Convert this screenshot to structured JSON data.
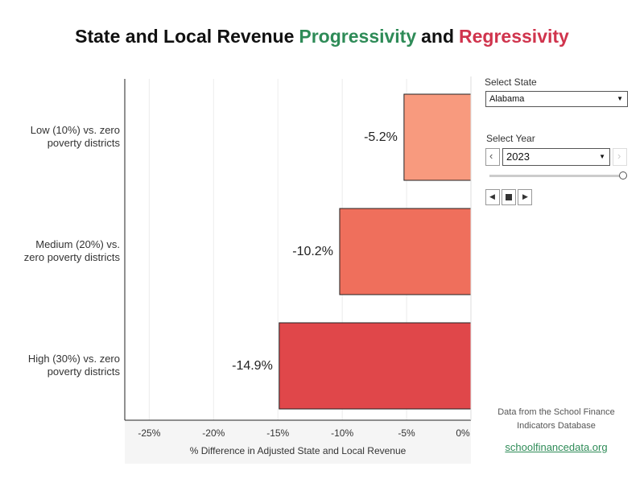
{
  "chart_data": {
    "type": "bar",
    "orientation": "horizontal",
    "title_parts": [
      {
        "text": "State and Local Revenue",
        "color": "#111111"
      },
      {
        "text": "Progressivity",
        "color": "#2e8b57"
      },
      {
        "text": "and",
        "color": "#111111"
      },
      {
        "text": "Regressivity",
        "color": "#d0344d"
      }
    ],
    "categories": [
      "Low (10%) vs. zero poverty districts",
      "Medium (20%) vs. zero poverty districts",
      "High (30%) vs. zero poverty districts"
    ],
    "values": [
      -5.2,
      -10.2,
      -14.9
    ],
    "value_labels": [
      "-5.2%",
      "-10.2%",
      "-14.9%"
    ],
    "colors": [
      "#f89a7e",
      "#ef6f5c",
      "#e0474a"
    ],
    "x_label": "% Difference in Adjusted State and Local Revenue",
    "xlim": [
      -26.9,
      0
    ],
    "xticks": [
      {
        "value": -25,
        "label": "-25%"
      },
      {
        "value": -20,
        "label": "-20%"
      },
      {
        "value": -15,
        "label": "-15%"
      },
      {
        "value": -10,
        "label": "-10%"
      },
      {
        "value": -5,
        "label": "-5%"
      },
      {
        "value": 0,
        "label": "0%"
      }
    ],
    "grid": true
  },
  "controls": {
    "state_label": "Select State",
    "state": "Alabama",
    "year_label": "Select Year",
    "year": "2023"
  },
  "footer": {
    "note": "Data from the School Finance Indicators Database",
    "link": "schoolfinancedata.org"
  }
}
